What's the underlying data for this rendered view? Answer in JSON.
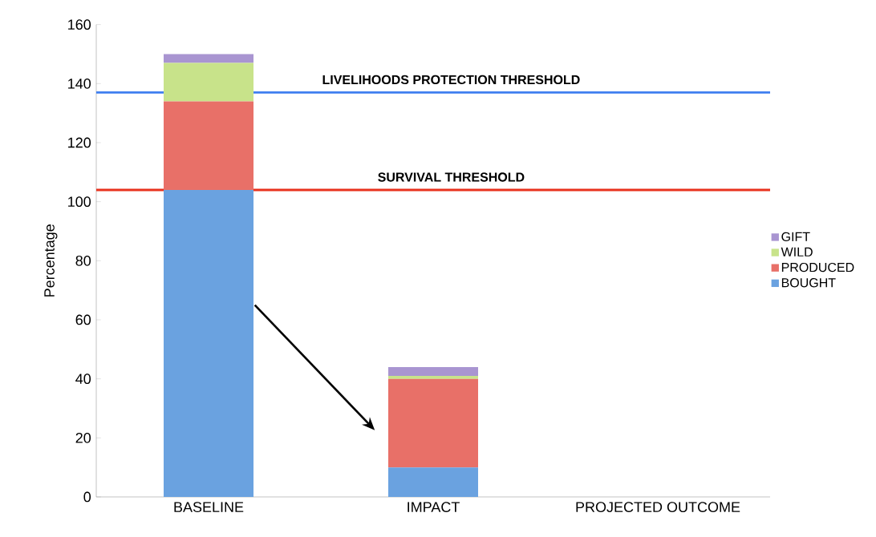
{
  "chart_data": {
    "type": "bar",
    "stacked": true,
    "ylabel": "Percentage",
    "categories": [
      "BASELINE",
      "IMPACT",
      "PROJECTED OUTCOME"
    ],
    "series": [
      {
        "name": "BOUGHT",
        "color": "#6aa2e0",
        "values": [
          104,
          10,
          null
        ]
      },
      {
        "name": "PRODUCED",
        "color": "#e87068",
        "values": [
          30,
          30,
          null
        ]
      },
      {
        "name": "WILD",
        "color": "#c8e38a",
        "values": [
          13,
          1,
          null
        ]
      },
      {
        "name": "GIFT",
        "color": "#a995d1",
        "values": [
          3,
          3,
          null
        ]
      }
    ],
    "ylim": [
      0,
      160
    ],
    "yticks": [
      0,
      20,
      40,
      60,
      80,
      100,
      120,
      140,
      160
    ],
    "ref_lines": [
      {
        "axis": "y",
        "value": 137,
        "label": "LIVELIHOODS PROTECTION THRESHOLD",
        "color": "#3f7ff0"
      },
      {
        "axis": "y",
        "value": 104,
        "label": "SURVIVAL THRESHOLD",
        "color": "#e8321e"
      }
    ],
    "legend": "right",
    "grid": false
  }
}
